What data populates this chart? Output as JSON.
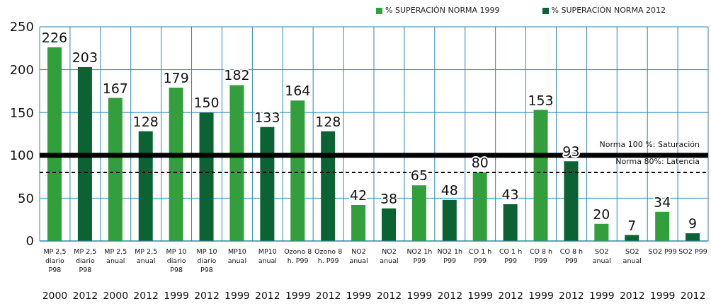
{
  "chart_data": {
    "type": "bar",
    "stacked": true,
    "categories": [
      "MP 2,5\ndiario\nP98\n2000",
      "MP 2,5\ndiario\nP98\n2012",
      "MP 2,5\nanual\n\n2000",
      "MP 2,5\nanual\n\n2012",
      "MP 10\ndiario\nP98\n1999",
      "MP 10\ndiario\nP98\n2012",
      "MP10\nanual\n\n1999",
      "MP10\nanual\n\n2012",
      "Ozono 8\nh. P99\n\n1999",
      "Ozono 8\nh. P99\n\n2012",
      "NO2\nanual\n\n1999",
      "NO2\nanual\n\n2012",
      "NO2 1h\nP99\n\n1999",
      "NO2 1h\nP99\n\n2012",
      "CO 1 h\nP99\n\n1999",
      "CO 1 h\nP99\n\n2012",
      "CO 8 h\nP99\n\n1999",
      "CO 8 h\nP99\n\n2012",
      "SO2\nanual\n\n1999",
      "SO2\nanual\n\n2012",
      "SO2 P99\n\n\n1999",
      "SO2 P99\n\n\n2012"
    ],
    "series": [
      {
        "name": "% SUPERACIÓN NORMA 1999",
        "color": "#339e3c",
        "values": [
          226,
          null,
          167,
          null,
          179,
          null,
          182,
          null,
          164,
          null,
          42,
          null,
          65,
          null,
          80,
          null,
          153,
          null,
          20,
          null,
          34,
          null
        ]
      },
      {
        "name": "% SUPERACIÓN NORMA 2012",
        "color": "#0b6334",
        "values": [
          null,
          203,
          null,
          128,
          null,
          150,
          null,
          133,
          null,
          128,
          null,
          38,
          null,
          48,
          null,
          43,
          null,
          93,
          null,
          7,
          null,
          9
        ]
      }
    ],
    "ylim": [
      0,
      250
    ],
    "yticks": [
      0,
      50,
      100,
      150,
      200,
      250
    ],
    "grid": true,
    "legend": "top right",
    "data_labels": true,
    "ref_lines": [
      {
        "axis": "y",
        "value": 100,
        "label": "Norma 100 %: Saturación",
        "color": "#000000",
        "line_style": "solid"
      },
      {
        "axis": "y",
        "value": 80,
        "label": "Norma 80%: Latencia",
        "color": "#000000",
        "line_style": "dashed"
      }
    ]
  }
}
